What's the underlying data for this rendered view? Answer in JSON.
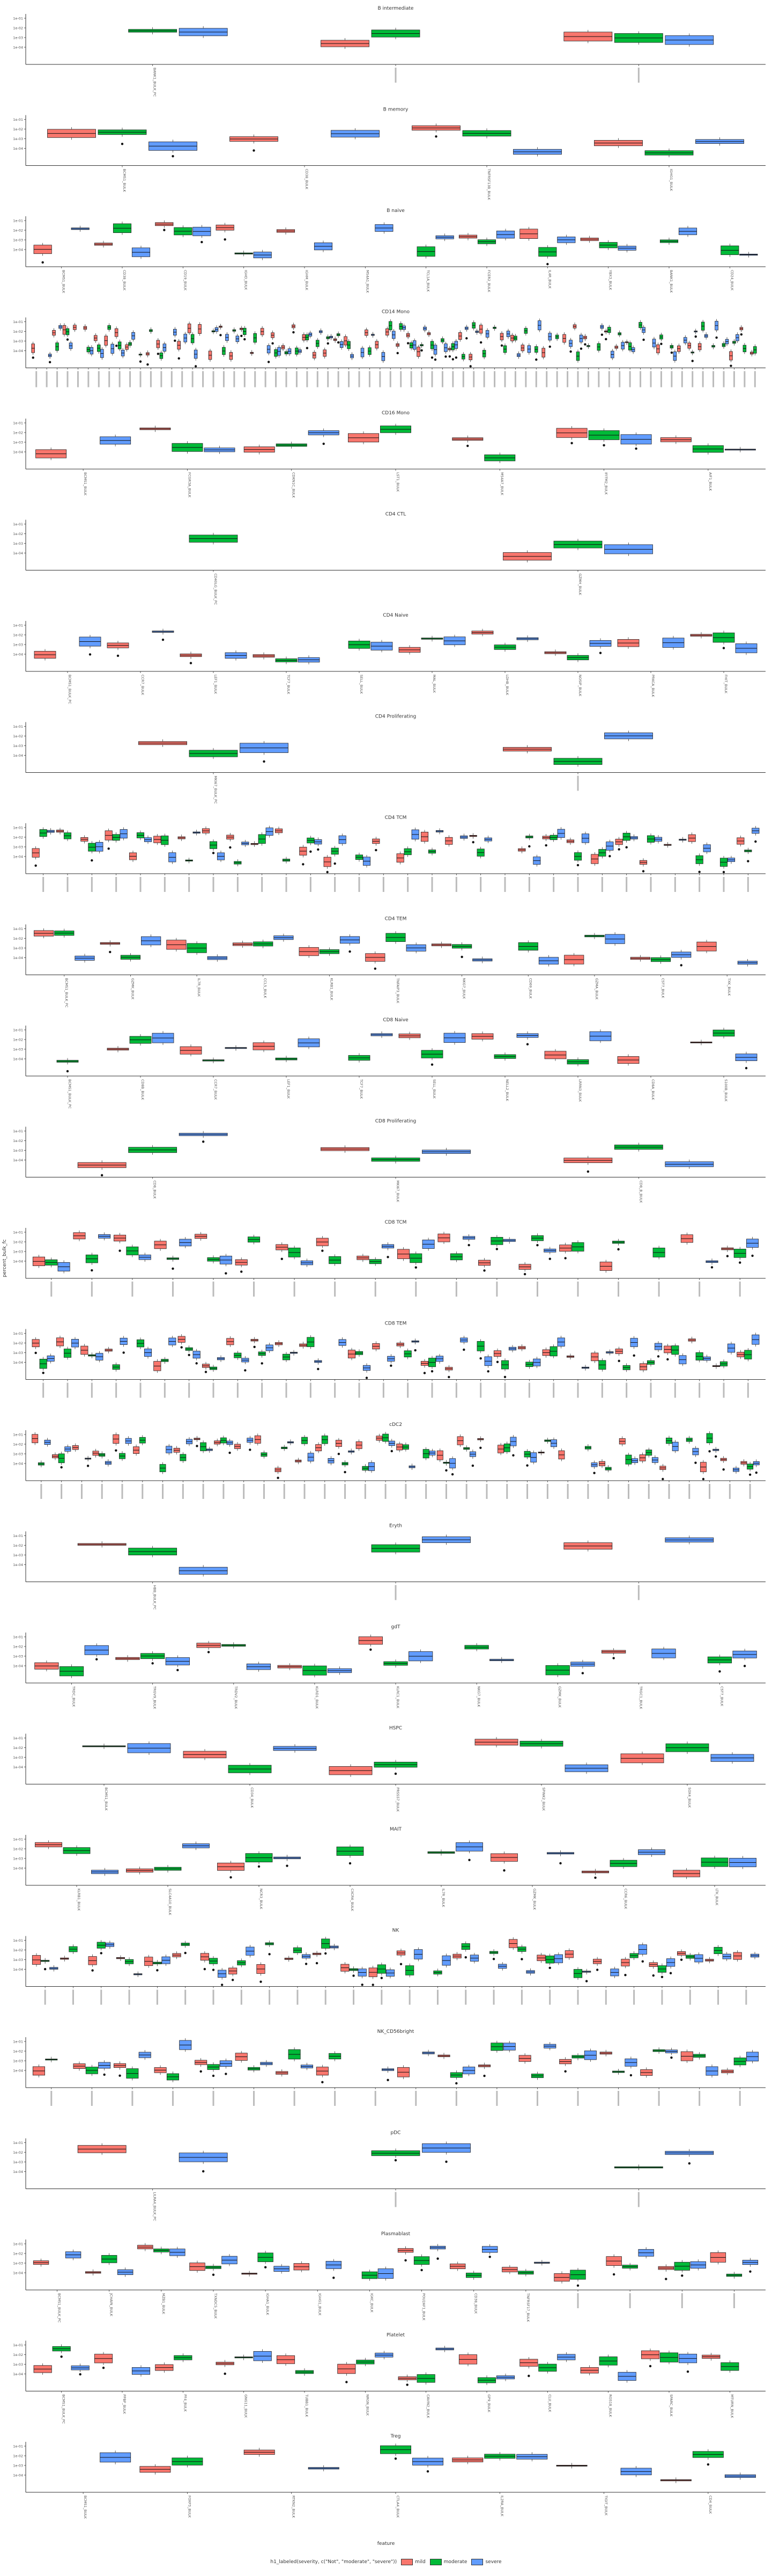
{
  "chart_data": {
    "type": "boxplot",
    "xlabel": "feature",
    "ylabel": "percent_bulk_fc",
    "legend": {
      "title": "h1_labeled(severity, c(\"Not\", \"moderate\", \"severe\"))",
      "placement": "bottom",
      "entries": [
        {
          "name": "mild",
          "color": "#f8766d"
        },
        {
          "name": "moderate",
          "color": "#00ba38"
        },
        {
          "name": "severe",
          "color": "#619cff"
        }
      ]
    },
    "y_tick_labels": [
      "1e-01",
      "1e-02",
      "1e-03",
      "1e-04"
    ],
    "panels": [
      {
        "title": "B intermediate",
        "features": [
          "BANK1_BULK_PC"
        ],
        "n_features": 3
      },
      {
        "title": "B memory",
        "features": [
          "BCMS1_BULK",
          "CD38_BULK",
          "TNFRSF13B_BULK",
          "IGHG1_BULK"
        ],
        "n_features": 4
      },
      {
        "title": "B naive",
        "features": [
          "BCMS1_BULK",
          "CD38_BULK",
          "CD19_BULK",
          "IGHD_BULK",
          "IGHM_BULK",
          "MS4A1_BULK",
          "TCL1A_BULK",
          "FCER2_BULK",
          "IL4R_BULK",
          "YBX3_BULK",
          "BANK1_BULK",
          "CD24_BULK"
        ],
        "n_features": 12
      },
      {
        "title": "CD14 Mono",
        "features": [],
        "n_features": 70
      },
      {
        "title": "CD16 Mono",
        "features": [
          "BCMS1_BULK",
          "FCGR3A_BULK",
          "CDKN1C_BULK",
          "LST1_BULK",
          "MS4A7_BULK",
          "IFITM2_BULK",
          "AIF1_BULK"
        ],
        "n_features": 7
      },
      {
        "title": "CD4 CTL",
        "features": [
          "CD40LG_BULK_PC",
          "GZMH_BULK"
        ],
        "n_features": 2
      },
      {
        "title": "CD4 Naive",
        "features": [
          "BCMS1_BULK_PC",
          "CCR7_BULK",
          "LEF1_BULK",
          "TCF7_BULK",
          "SELL_BULK",
          "MAL_BULK",
          "LDHB_BULK",
          "NOSIP_BULK",
          "PRKCA_BULK",
          "FHIT_BULK"
        ],
        "n_features": 10
      },
      {
        "title": "CD4 Proliferating",
        "features": [
          "MKI67_BULK_PC"
        ],
        "n_features": 2
      },
      {
        "title": "CD4 TCM",
        "features": [],
        "n_features": 30
      },
      {
        "title": "CD4 TEM",
        "features": [
          "BCMS1_BULK_PC",
          "GZMK_BULK",
          "IL7R_BULK",
          "CCL5_BULK",
          "KLRB1_BULK",
          "TNFAIP3_BULK",
          "NKG7_BULK",
          "CD69_BULK",
          "GZMA_BULK",
          "CST7_BULK",
          "TXK_BULK"
        ],
        "n_features": 11
      },
      {
        "title": "CD8 Naive",
        "features": [
          "BCMS1_BULK_PC",
          "CD8B_BULK",
          "CCR7_BULK",
          "LEF1_BULK",
          "TCF7_BULK",
          "SELL_BULK",
          "NELL2_BULK",
          "LRRN3_BULK",
          "CD8A_BULK",
          "S100B_BULK"
        ],
        "n_features": 10
      },
      {
        "title": "CD8 Proliferating",
        "features": [
          "CD8_BULK",
          "MKI67_BULK",
          "CD8_B_BULK"
        ],
        "n_features": 3
      },
      {
        "title": "CD8 TCM",
        "features": [],
        "n_features": 18
      },
      {
        "title": "CD8 TEM",
        "features": [],
        "n_features": 30
      },
      {
        "title": "cDC2",
        "features": [],
        "n_features": 36
      },
      {
        "title": "Eryth",
        "features": [
          "HBB_BULK_PC"
        ],
        "n_features": 3
      },
      {
        "title": "gdT",
        "features": [
          "TRDC_BULK",
          "TRGV9_BULK",
          "TRDV2_BULK",
          "KLRD1_BULK",
          "KLRC1_BULK",
          "NKG7_BULK",
          "GZMK_BULK",
          "TRGC1_BULK",
          "CST7_BULK"
        ],
        "n_features": 9
      },
      {
        "title": "HSPC",
        "features": [
          "BCMS1_BULK",
          "CD34_BULK",
          "PRSS57_BULK",
          "SPINK2_BULK",
          "SOX4_BULK"
        ],
        "n_features": 5
      },
      {
        "title": "MAIT",
        "features": [
          "KLRB1_BULK",
          "SLC4A10_BULK",
          "NCR3_BULK",
          "CXCR6_BULK",
          "IL7R_BULK",
          "GZMK_BULK",
          "CCR6_BULK",
          "LTK_BULK"
        ],
        "n_features": 8
      },
      {
        "title": "NK",
        "features": [],
        "n_features": 26
      },
      {
        "title": "NK_CD56bright",
        "features": [],
        "n_features": 18
      },
      {
        "title": "pDC",
        "features": [
          "LILRA4_BULK_PC"
        ],
        "n_features": 3
      },
      {
        "title": "Plasmablast",
        "features": [
          "BCMS1_BULK_PC",
          "JCHAIN_BULK",
          "MZB1_BULK",
          "TXNDC5_BULK",
          "IGHA1_BULK",
          "IGHG1_BULK",
          "IGKC_BULK",
          "POU2AF1_BULK",
          "CD38_BULK",
          "TNFRSF17_BULK"
        ],
        "n_features": 14
      },
      {
        "title": "Platelet",
        "features": [
          "BCMS1_BULK_PC",
          "PPBP_BULK",
          "PF4_BULK",
          "GNG11_BULK",
          "TUBB1_BULK",
          "NRGN_BULK",
          "CAVIN2_BULK",
          "GP9_BULK",
          "CLU_BULK",
          "RGS18_BULK",
          "SPARC_BULK",
          "MTURN_BULK"
        ],
        "n_features": 12
      },
      {
        "title": "Treg",
        "features": [
          "BCMS1_BULK",
          "FOXP3_BULK",
          "RTKN2_BULK",
          "CTLA4_BULK",
          "IL2RA_BULK",
          "TIGIT_BULK",
          "CD4_BULK"
        ],
        "n_features": 7
      }
    ]
  }
}
